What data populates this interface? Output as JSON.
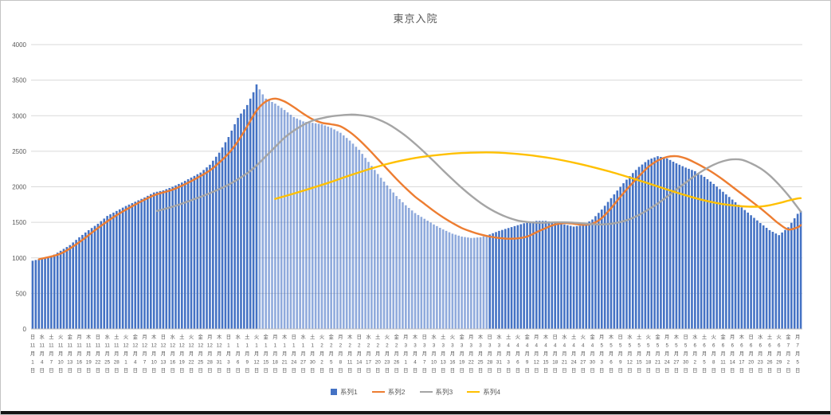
{
  "chart_data": {
    "type": "bar",
    "combo": "bar+line",
    "title": "東京入院",
    "ylim": [
      0,
      4000
    ],
    "yticks": [
      0,
      500,
      1000,
      1500,
      2000,
      2500,
      3000,
      3500,
      4000
    ],
    "grid": true,
    "legend_position": "bottom",
    "x_count": 248,
    "tick_every": 3,
    "ticks": [
      [
        "日",
        11,
        1
      ],
      [
        "水",
        11,
        4
      ],
      [
        "土",
        11,
        7
      ],
      [
        "火",
        11,
        10
      ],
      [
        "金",
        11,
        13
      ],
      [
        "月",
        11,
        16
      ],
      [
        "木",
        11,
        19
      ],
      [
        "日",
        11,
        22
      ],
      [
        "水",
        11,
        25
      ],
      [
        "土",
        11,
        28
      ],
      [
        "火",
        12,
        1
      ],
      [
        "金",
        12,
        4
      ],
      [
        "月",
        12,
        7
      ],
      [
        "木",
        12,
        10
      ],
      [
        "日",
        12,
        13
      ],
      [
        "水",
        12,
        16
      ],
      [
        "土",
        12,
        19
      ],
      [
        "火",
        12,
        22
      ],
      [
        "金",
        12,
        25
      ],
      [
        "月",
        12,
        28
      ],
      [
        "木",
        12,
        31
      ],
      [
        "日",
        1,
        3
      ],
      [
        "水",
        1,
        6
      ],
      [
        "土",
        1,
        9
      ],
      [
        "火",
        1,
        12
      ],
      [
        "金",
        1,
        15
      ],
      [
        "月",
        1,
        18
      ],
      [
        "木",
        1,
        21
      ],
      [
        "日",
        1,
        24
      ],
      [
        "水",
        1,
        27
      ],
      [
        "土",
        1,
        30
      ],
      [
        "火",
        2,
        2
      ],
      [
        "金",
        2,
        5
      ],
      [
        "月",
        2,
        8
      ],
      [
        "木",
        2,
        11
      ],
      [
        "日",
        2,
        14
      ],
      [
        "水",
        2,
        17
      ],
      [
        "土",
        2,
        20
      ],
      [
        "火",
        2,
        23
      ],
      [
        "金",
        2,
        26
      ],
      [
        "月",
        3,
        1
      ],
      [
        "木",
        3,
        4
      ],
      [
        "日",
        3,
        7
      ],
      [
        "水",
        3,
        10
      ],
      [
        "土",
        3,
        13
      ],
      [
        "火",
        3,
        16
      ],
      [
        "金",
        3,
        19
      ],
      [
        "月",
        3,
        22
      ],
      [
        "木",
        3,
        25
      ],
      [
        "日",
        3,
        28
      ],
      [
        "水",
        3,
        31
      ],
      [
        "土",
        4,
        3
      ],
      [
        "火",
        4,
        6
      ],
      [
        "金",
        4,
        9
      ],
      [
        "月",
        4,
        12
      ],
      [
        "木",
        4,
        15
      ],
      [
        "日",
        4,
        18
      ],
      [
        "水",
        4,
        21
      ],
      [
        "土",
        4,
        24
      ],
      [
        "火",
        4,
        27
      ],
      [
        "金",
        4,
        30
      ],
      [
        "月",
        5,
        3
      ],
      [
        "木",
        5,
        6
      ],
      [
        "日",
        5,
        9
      ],
      [
        "水",
        5,
        12
      ],
      [
        "土",
        5,
        15
      ],
      [
        "火",
        5,
        18
      ],
      [
        "金",
        5,
        21
      ],
      [
        "月",
        5,
        24
      ],
      [
        "木",
        5,
        27
      ],
      [
        "日",
        5,
        30
      ],
      [
        "水",
        6,
        2
      ],
      [
        "土",
        6,
        5
      ],
      [
        "火",
        6,
        8
      ],
      [
        "金",
        6,
        11
      ],
      [
        "月",
        6,
        14
      ],
      [
        "木",
        6,
        17
      ],
      [
        "日",
        6,
        20
      ],
      [
        "水",
        6,
        23
      ],
      [
        "土",
        6,
        26
      ],
      [
        "火",
        6,
        29
      ],
      [
        "金",
        7,
        2
      ],
      [
        "月",
        7,
        5
      ]
    ],
    "lighter_bar_range": {
      "from": 73,
      "to": 146,
      "opacity": 0.6
    },
    "series": [
      {
        "name": "系列1",
        "type": "bar",
        "color": "#4472C4",
        "values": [
          960,
          970,
          980,
          990,
          1000,
          1010,
          1020,
          1047,
          1073,
          1100,
          1127,
          1153,
          1180,
          1217,
          1253,
          1290,
          1323,
          1357,
          1390,
          1420,
          1450,
          1480,
          1517,
          1553,
          1590,
          1613,
          1637,
          1660,
          1683,
          1707,
          1730,
          1750,
          1770,
          1790,
          1810,
          1830,
          1850,
          1873,
          1897,
          1920,
          1930,
          1940,
          1950,
          1967,
          1983,
          2000,
          2020,
          2040,
          2060,
          2083,
          2107,
          2130,
          2153,
          2177,
          2200,
          2237,
          2273,
          2310,
          2367,
          2423,
          2480,
          2553,
          2627,
          2700,
          2790,
          2880,
          2970,
          3030,
          3090,
          3150,
          3240,
          3330,
          3440,
          3370,
          3300,
          3240,
          3217,
          3193,
          3170,
          3140,
          3110,
          3080,
          3047,
          3013,
          2980,
          2960,
          2940,
          2920,
          2913,
          2907,
          2900,
          2893,
          2887,
          2880,
          2863,
          2847,
          2830,
          2807,
          2783,
          2760,
          2723,
          2687,
          2650,
          2607,
          2563,
          2520,
          2463,
          2407,
          2350,
          2293,
          2237,
          2180,
          2127,
          2073,
          2020,
          1970,
          1920,
          1870,
          1827,
          1783,
          1740,
          1703,
          1667,
          1630,
          1603,
          1577,
          1550,
          1523,
          1497,
          1470,
          1447,
          1423,
          1400,
          1380,
          1360,
          1340,
          1327,
          1313,
          1300,
          1293,
          1287,
          1280,
          1283,
          1287,
          1290,
          1303,
          1317,
          1330,
          1347,
          1363,
          1380,
          1393,
          1407,
          1420,
          1433,
          1447,
          1460,
          1473,
          1487,
          1500,
          1507,
          1513,
          1520,
          1520,
          1520,
          1520,
          1513,
          1507,
          1500,
          1490,
          1480,
          1470,
          1460,
          1450,
          1440,
          1447,
          1453,
          1460,
          1487,
          1513,
          1540,
          1587,
          1633,
          1680,
          1733,
          1787,
          1840,
          1893,
          1947,
          2000,
          2050,
          2100,
          2150,
          2193,
          2237,
          2280,
          2313,
          2347,
          2380,
          2397,
          2413,
          2430,
          2420,
          2410,
          2400,
          2377,
          2353,
          2330,
          2310,
          2290,
          2270,
          2253,
          2237,
          2220,
          2193,
          2167,
          2140,
          2107,
          2073,
          2040,
          2003,
          1967,
          1930,
          1893,
          1857,
          1820,
          1783,
          1747,
          1710,
          1673,
          1637,
          1600,
          1563,
          1527,
          1490,
          1457,
          1423,
          1390,
          1367,
          1343,
          1320,
          1357,
          1393,
          1430,
          1493,
          1557,
          1620,
          1660
        ]
      },
      {
        "name": "系列2",
        "type": "line",
        "color": "#ED7D31",
        "points": [
          [
            2,
            980
          ],
          [
            9,
            1060
          ],
          [
            15,
            1220
          ],
          [
            21,
            1420
          ],
          [
            27,
            1600
          ],
          [
            33,
            1750
          ],
          [
            39,
            1880
          ],
          [
            45,
            1960
          ],
          [
            51,
            2080
          ],
          [
            57,
            2230
          ],
          [
            60,
            2340
          ],
          [
            63,
            2470
          ],
          [
            66,
            2640
          ],
          [
            69,
            2850
          ],
          [
            72,
            3070
          ],
          [
            75,
            3200
          ],
          [
            78,
            3240
          ],
          [
            81,
            3200
          ],
          [
            84,
            3120
          ],
          [
            87,
            3030
          ],
          [
            90,
            2950
          ],
          [
            93,
            2900
          ],
          [
            96,
            2880
          ],
          [
            99,
            2850
          ],
          [
            102,
            2770
          ],
          [
            105,
            2660
          ],
          [
            108,
            2530
          ],
          [
            111,
            2390
          ],
          [
            114,
            2250
          ],
          [
            117,
            2110
          ],
          [
            120,
            1980
          ],
          [
            123,
            1860
          ],
          [
            126,
            1760
          ],
          [
            129,
            1660
          ],
          [
            132,
            1570
          ],
          [
            135,
            1490
          ],
          [
            138,
            1420
          ],
          [
            141,
            1370
          ],
          [
            144,
            1330
          ],
          [
            147,
            1300
          ],
          [
            150,
            1280
          ],
          [
            153,
            1270
          ],
          [
            156,
            1275
          ],
          [
            159,
            1300
          ],
          [
            162,
            1360
          ],
          [
            165,
            1420
          ],
          [
            168,
            1470
          ],
          [
            171,
            1490
          ],
          [
            174,
            1480
          ],
          [
            177,
            1465
          ],
          [
            180,
            1480
          ],
          [
            183,
            1560
          ],
          [
            186,
            1700
          ],
          [
            189,
            1860
          ],
          [
            192,
            2010
          ],
          [
            195,
            2150
          ],
          [
            198,
            2280
          ],
          [
            201,
            2370
          ],
          [
            204,
            2420
          ],
          [
            207,
            2430
          ],
          [
            210,
            2400
          ],
          [
            213,
            2340
          ],
          [
            216,
            2270
          ],
          [
            219,
            2190
          ],
          [
            222,
            2100
          ],
          [
            225,
            2000
          ],
          [
            228,
            1900
          ],
          [
            231,
            1800
          ],
          [
            234,
            1700
          ],
          [
            237,
            1590
          ],
          [
            240,
            1480
          ],
          [
            243,
            1400
          ],
          [
            246,
            1430
          ],
          [
            247,
            1460
          ]
        ]
      },
      {
        "name": "系列3",
        "type": "line",
        "color": "#A5A5A5",
        "points": [
          [
            40,
            1660
          ],
          [
            45,
            1720
          ],
          [
            51,
            1810
          ],
          [
            57,
            1910
          ],
          [
            63,
            2030
          ],
          [
            69,
            2190
          ],
          [
            72,
            2300
          ],
          [
            75,
            2430
          ],
          [
            78,
            2560
          ],
          [
            81,
            2690
          ],
          [
            84,
            2790
          ],
          [
            87,
            2870
          ],
          [
            90,
            2930
          ],
          [
            93,
            2965
          ],
          [
            96,
            2990
          ],
          [
            99,
            3005
          ],
          [
            102,
            3015
          ],
          [
            105,
            3010
          ],
          [
            108,
            2990
          ],
          [
            111,
            2950
          ],
          [
            114,
            2890
          ],
          [
            117,
            2810
          ],
          [
            120,
            2715
          ],
          [
            123,
            2605
          ],
          [
            126,
            2485
          ],
          [
            129,
            2360
          ],
          [
            132,
            2230
          ],
          [
            135,
            2105
          ],
          [
            138,
            1985
          ],
          [
            141,
            1875
          ],
          [
            144,
            1775
          ],
          [
            147,
            1690
          ],
          [
            150,
            1620
          ],
          [
            153,
            1565
          ],
          [
            156,
            1525
          ],
          [
            159,
            1505
          ],
          [
            162,
            1495
          ],
          [
            165,
            1495
          ],
          [
            168,
            1500
          ],
          [
            171,
            1500
          ],
          [
            174,
            1495
          ],
          [
            177,
            1485
          ],
          [
            180,
            1475
          ],
          [
            183,
            1470
          ],
          [
            186,
            1480
          ],
          [
            189,
            1505
          ],
          [
            192,
            1545
          ],
          [
            195,
            1605
          ],
          [
            198,
            1680
          ],
          [
            201,
            1765
          ],
          [
            204,
            1860
          ],
          [
            207,
            1960
          ],
          [
            210,
            2060
          ],
          [
            213,
            2155
          ],
          [
            216,
            2240
          ],
          [
            219,
            2310
          ],
          [
            222,
            2360
          ],
          [
            225,
            2385
          ],
          [
            228,
            2380
          ],
          [
            231,
            2330
          ],
          [
            234,
            2260
          ],
          [
            237,
            2160
          ],
          [
            240,
            2030
          ],
          [
            243,
            1880
          ],
          [
            246,
            1710
          ],
          [
            247,
            1650
          ]
        ]
      },
      {
        "name": "系列4",
        "type": "line",
        "color": "#FFC000",
        "points": [
          [
            78,
            1830
          ],
          [
            84,
            1905
          ],
          [
            90,
            1985
          ],
          [
            96,
            2070
          ],
          [
            102,
            2160
          ],
          [
            108,
            2245
          ],
          [
            114,
            2320
          ],
          [
            120,
            2380
          ],
          [
            126,
            2425
          ],
          [
            132,
            2455
          ],
          [
            138,
            2475
          ],
          [
            144,
            2483
          ],
          [
            150,
            2480
          ],
          [
            156,
            2462
          ],
          [
            162,
            2433
          ],
          [
            168,
            2392
          ],
          [
            174,
            2340
          ],
          [
            180,
            2278
          ],
          [
            186,
            2208
          ],
          [
            192,
            2130
          ],
          [
            198,
            2048
          ],
          [
            204,
            1962
          ],
          [
            210,
            1880
          ],
          [
            216,
            1808
          ],
          [
            222,
            1756
          ],
          [
            228,
            1726
          ],
          [
            231,
            1720
          ],
          [
            234,
            1722
          ],
          [
            237,
            1740
          ],
          [
            240,
            1770
          ],
          [
            243,
            1805
          ],
          [
            246,
            1835
          ],
          [
            247,
            1840
          ]
        ]
      }
    ],
    "colors": {
      "gridline": "#d9d9d9",
      "axis_line": "#bfbfbf",
      "axis_text": "#595959"
    }
  }
}
